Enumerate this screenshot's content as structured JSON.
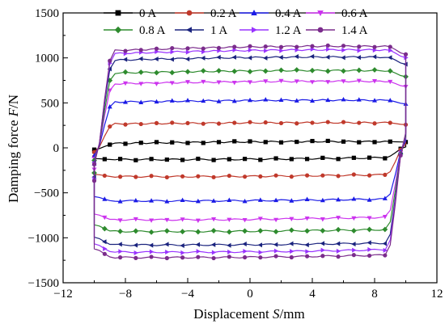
{
  "chart_data": {
    "type": "line",
    "title": "",
    "xlabel_main": "Displacement ",
    "xlabel_var": "S",
    "xlabel_unit": "/mm",
    "ylabel_main": "Damping force ",
    "ylabel_var": "F",
    "ylabel_unit": "/N",
    "xlim": [
      -12,
      12
    ],
    "ylim": [
      -1500,
      1500
    ],
    "xticks": [
      -12,
      -8,
      -4,
      0,
      4,
      8,
      12
    ],
    "yticks": [
      -1500,
      -1000,
      -500,
      0,
      500,
      1000,
      1500
    ],
    "grid": false,
    "legend_position": "top",
    "loop_geometry": {
      "x_min": -10,
      "x_max": 10,
      "corner_x": 8.8
    },
    "series": [
      {
        "name": "0 A",
        "color": "#000000",
        "marker": "square",
        "upper_force": 70,
        "lower_force": -130,
        "upper_left_force": 40,
        "lower_right_force": -100
      },
      {
        "name": "0.2 A",
        "color": "#c0392b",
        "marker": "circle",
        "upper_force": 280,
        "lower_force": -320,
        "upper_left_force": 260,
        "lower_right_force": -290
      },
      {
        "name": "0.4 A",
        "color": "#1a1ae6",
        "marker": "triangle-up",
        "upper_force": 530,
        "lower_force": -590,
        "upper_left_force": 500,
        "lower_right_force": -560
      },
      {
        "name": "0.6 A",
        "color": "#cc33ee",
        "marker": "triangle-down",
        "upper_force": 740,
        "lower_force": -800,
        "upper_left_force": 700,
        "lower_right_force": -760
      },
      {
        "name": "0.8 A",
        "color": "#2e8b2e",
        "marker": "diamond",
        "upper_force": 860,
        "lower_force": -930,
        "upper_left_force": 820,
        "lower_right_force": -900
      },
      {
        "name": "1 A",
        "color": "#1a237e",
        "marker": "triangle-left",
        "upper_force": 1010,
        "lower_force": -1080,
        "upper_left_force": 960,
        "lower_right_force": -1050
      },
      {
        "name": "1.2 A",
        "color": "#9933ff",
        "marker": "triangle-right",
        "upper_force": 1090,
        "lower_force": -1160,
        "upper_left_force": 1030,
        "lower_right_force": -1120
      },
      {
        "name": "1.4 A",
        "color": "#7b2c8c",
        "marker": "circle",
        "upper_force": 1130,
        "lower_force": -1220,
        "upper_left_force": 1060,
        "lower_right_force": -1180
      }
    ]
  }
}
